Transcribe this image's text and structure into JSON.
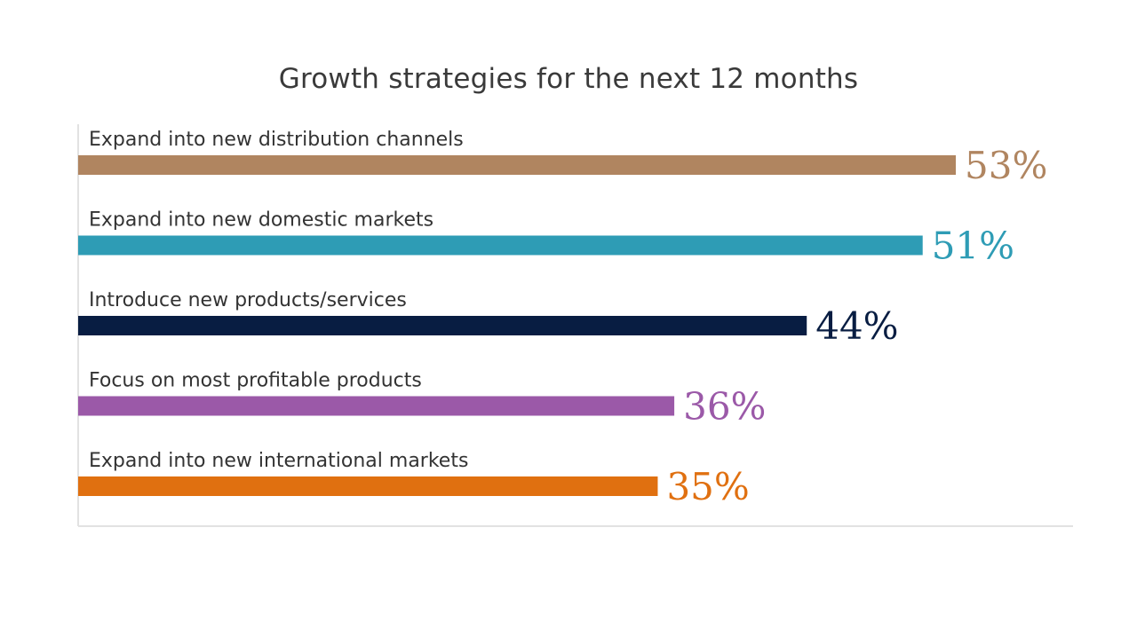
{
  "chart_data": {
    "type": "bar",
    "orientation": "horizontal",
    "title": "Growth strategies for the next 12 months",
    "categories": [
      "Expand into new distribution channels",
      "Expand into new domestic markets",
      "Introduce new products/services",
      "Focus on most profitable products",
      "Expand into new international markets"
    ],
    "values": [
      53,
      51,
      44,
      36,
      35
    ],
    "value_labels": [
      "53%",
      "51%",
      "44%",
      "36%",
      "35%"
    ],
    "colors": [
      "#b08560",
      "#2e9cb5",
      "#081d42",
      "#9b59a8",
      "#e07010"
    ],
    "xlim": [
      0,
      60
    ],
    "unit": "%",
    "grid": false,
    "legend": "none"
  }
}
